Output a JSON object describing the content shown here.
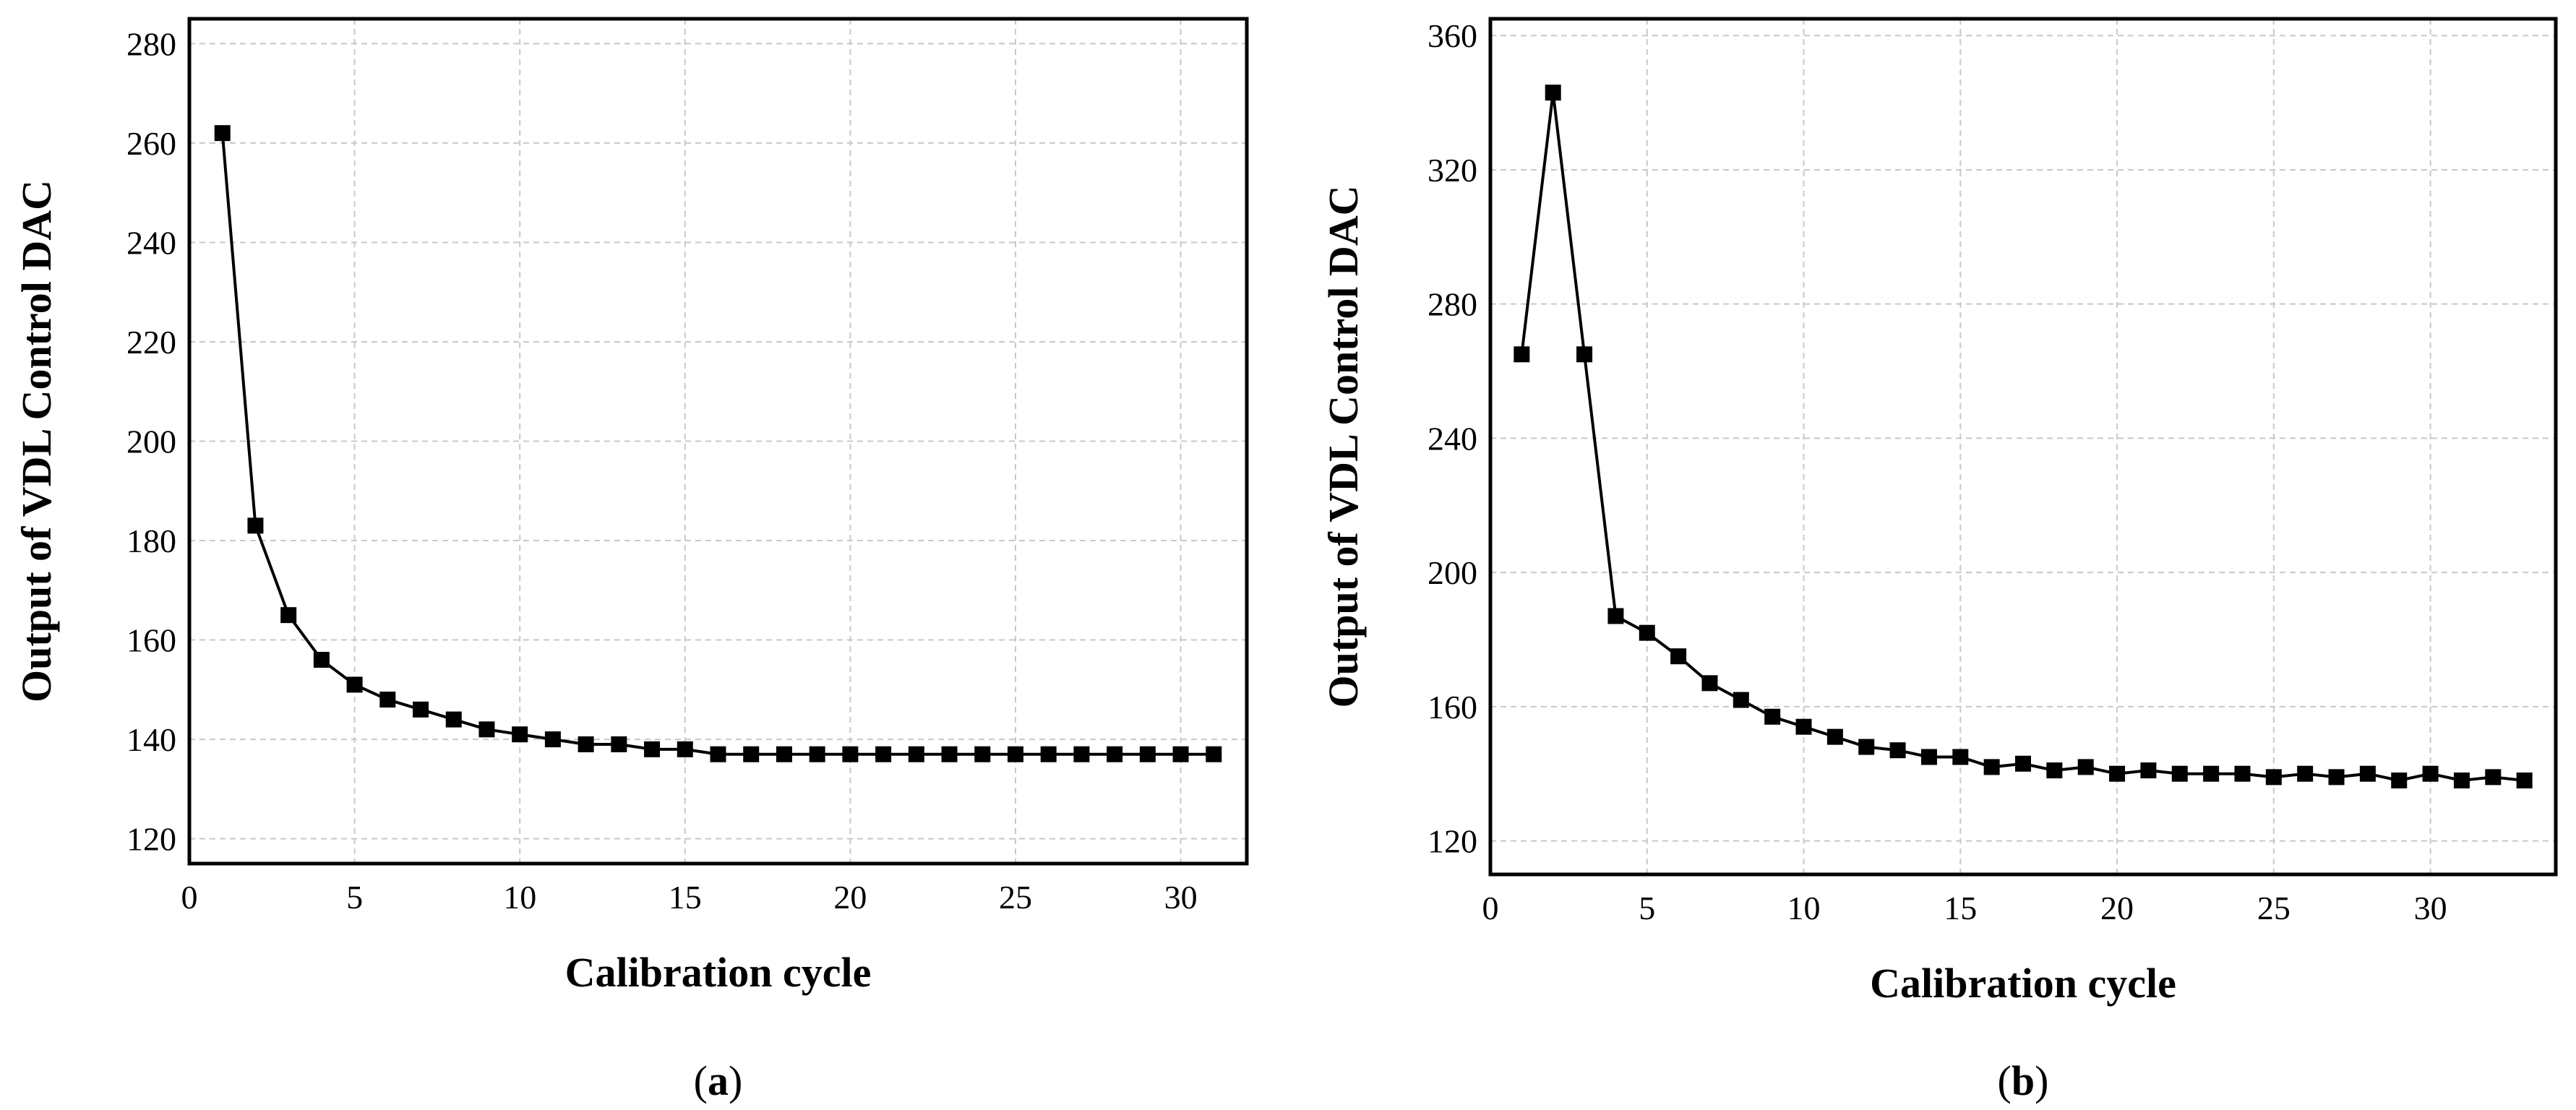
{
  "chart_data": [
    {
      "type": "line",
      "panel": "a",
      "caption_letter": "a",
      "xlabel": "Calibration cycle",
      "ylabel": "Output of VDL Control DAC",
      "xlim": [
        0,
        32
      ],
      "ylim": [
        115,
        285
      ],
      "xticks": [
        0,
        5,
        10,
        15,
        20,
        25,
        30
      ],
      "yticks": [
        120,
        140,
        160,
        180,
        200,
        220,
        240,
        260,
        280
      ],
      "x": [
        1,
        2,
        3,
        4,
        5,
        6,
        7,
        8,
        9,
        10,
        11,
        12,
        13,
        14,
        15,
        16,
        17,
        18,
        19,
        20,
        21,
        22,
        23,
        24,
        25,
        26,
        27,
        28,
        29,
        30,
        31
      ],
      "values": [
        262,
        183,
        165,
        156,
        151,
        148,
        146,
        144,
        142,
        141,
        140,
        139,
        139,
        138,
        138,
        137,
        137,
        137,
        137,
        137,
        137,
        137,
        137,
        137,
        137,
        137,
        137,
        137,
        137,
        137,
        137
      ]
    },
    {
      "type": "line",
      "panel": "b",
      "caption_letter": "b",
      "xlabel": "Calibration cycle",
      "ylabel": "Output of VDL Control DAC",
      "xlim": [
        0,
        34
      ],
      "ylim": [
        110,
        365
      ],
      "xticks": [
        0,
        5,
        10,
        15,
        20,
        25,
        30
      ],
      "yticks": [
        120,
        160,
        200,
        240,
        280,
        320,
        360
      ],
      "x": [
        1,
        2,
        3,
        4,
        5,
        6,
        7,
        8,
        9,
        10,
        11,
        12,
        13,
        14,
        15,
        16,
        17,
        18,
        19,
        20,
        21,
        22,
        23,
        24,
        25,
        26,
        27,
        28,
        29,
        30,
        31,
        32,
        33
      ],
      "values": [
        265,
        343,
        265,
        187,
        182,
        175,
        167,
        162,
        157,
        154,
        151,
        148,
        147,
        145,
        145,
        142,
        143,
        141,
        142,
        140,
        141,
        140,
        140,
        140,
        139,
        140,
        139,
        140,
        138,
        140,
        138,
        139,
        138
      ]
    }
  ]
}
